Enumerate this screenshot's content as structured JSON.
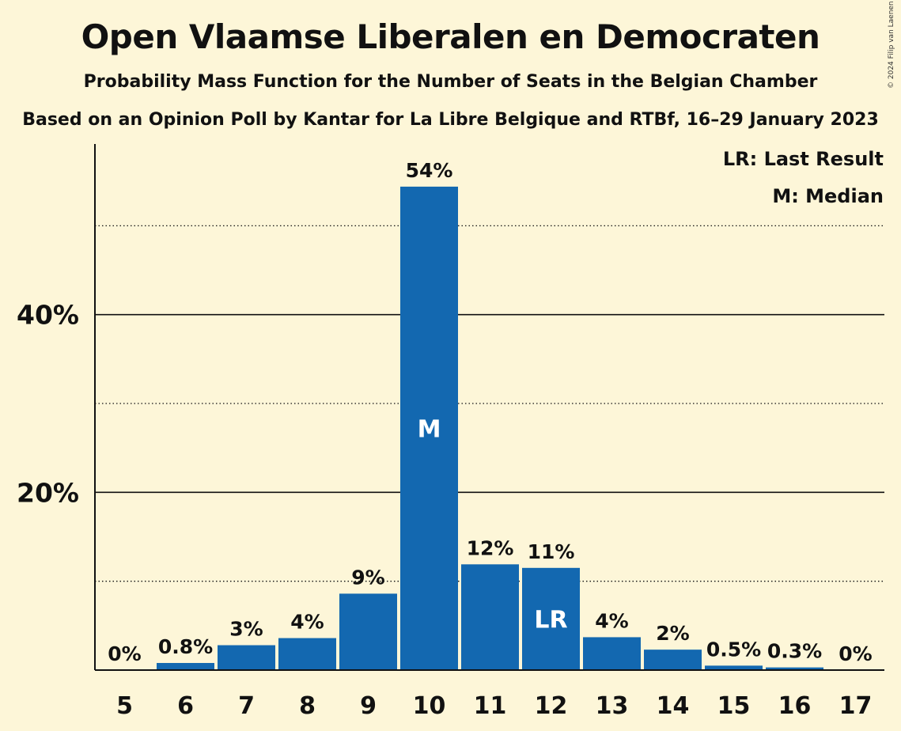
{
  "chart_data": {
    "type": "bar",
    "title": "Open Vlaamse Liberalen en Democraten",
    "subtitle": "Probability Mass Function for the Number of Seats in the Belgian Chamber",
    "subtitle2": "Based on an Opinion Poll by Kantar for La Libre Belgique and RTBf, 16–29 January 2023",
    "copyright": "© 2024 Filip van Laenen",
    "categories": [
      "5",
      "6",
      "7",
      "8",
      "9",
      "10",
      "11",
      "12",
      "13",
      "14",
      "15",
      "16",
      "17"
    ],
    "values": [
      0,
      0.8,
      2.8,
      3.6,
      8.6,
      54.4,
      11.9,
      11.5,
      3.7,
      2.3,
      0.5,
      0.3,
      0
    ],
    "value_labels": [
      "0%",
      "0.8%",
      "3%",
      "4%",
      "9%",
      "54%",
      "12%",
      "11%",
      "4%",
      "2%",
      "0.5%",
      "0.3%",
      "0%"
    ],
    "ylim": [
      0,
      59.2
    ],
    "yticks": [
      20,
      40
    ],
    "ytick_labels": [
      "20%",
      "40%"
    ],
    "minor_gridlines": [
      10,
      30,
      50
    ],
    "bar_color": "#1368b0",
    "background": "#fdf6d8",
    "markers": [
      {
        "category": "10",
        "label": "M"
      },
      {
        "category": "12",
        "label": "LR"
      }
    ],
    "legend": [
      "LR: Last Result",
      "M: Median"
    ],
    "legend_position": "top-right"
  }
}
